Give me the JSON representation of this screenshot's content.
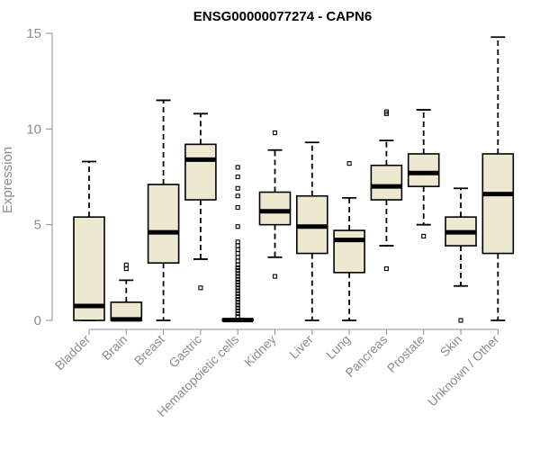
{
  "chart_data": {
    "type": "box",
    "title": "ENSG00000077274 - CAPN6",
    "xlabel": "",
    "ylabel": "Expression",
    "ylim": [
      0,
      15
    ],
    "yticks": [
      0,
      5,
      10,
      15
    ],
    "categories": [
      "Bladder",
      "Brain",
      "Breast",
      "Gastric",
      "Hematopoietic cells",
      "Kidney",
      "Liver",
      "Lung",
      "Pancreas",
      "Prostate",
      "Skin",
      "Unknown / Other"
    ],
    "boxes": [
      {
        "name": "Bladder",
        "min": 0,
        "q1": 0.0,
        "median": 0.75,
        "q3": 5.4,
        "max": 8.3,
        "outliers": []
      },
      {
        "name": "Brain",
        "min": 0,
        "q1": 0.0,
        "median": 0.05,
        "q3": 0.95,
        "max": 2.1,
        "outliers": [
          2.7,
          2.9
        ]
      },
      {
        "name": "Breast",
        "min": 0,
        "q1": 3.0,
        "median": 4.6,
        "q3": 7.1,
        "max": 11.5,
        "outliers": []
      },
      {
        "name": "Gastric",
        "min": 3.2,
        "q1": 6.3,
        "median": 8.4,
        "q3": 9.2,
        "max": 10.8,
        "outliers": [
          1.7
        ]
      },
      {
        "name": "Hematopoietic cells",
        "min": 0,
        "q1": 0.0,
        "median": 0.02,
        "q3": 0.05,
        "max": 0.1,
        "outliers": [
          0.2,
          0.35,
          0.5,
          0.65,
          0.8,
          0.95,
          1.1,
          1.25,
          1.4,
          1.55,
          1.7,
          1.85,
          2.0,
          2.15,
          2.3,
          2.45,
          2.6,
          2.75,
          2.9,
          3.1,
          3.3,
          3.5,
          3.7,
          3.9,
          4.1,
          4.9,
          5.9,
          6.5,
          6.9,
          7.5,
          8.0
        ]
      },
      {
        "name": "Kidney",
        "min": 3.3,
        "q1": 5.0,
        "median": 5.7,
        "q3": 6.7,
        "max": 8.9,
        "outliers": [
          9.8,
          2.3
        ]
      },
      {
        "name": "Liver",
        "min": 0,
        "q1": 3.5,
        "median": 4.9,
        "q3": 6.5,
        "max": 9.3,
        "outliers": []
      },
      {
        "name": "Lung",
        "min": 0,
        "q1": 2.5,
        "median": 4.2,
        "q3": 4.7,
        "max": 6.4,
        "outliers": [
          8.2
        ]
      },
      {
        "name": "Pancreas",
        "min": 3.9,
        "q1": 6.3,
        "median": 7.0,
        "q3": 8.1,
        "max": 9.4,
        "outliers": [
          10.8,
          10.9,
          2.7
        ]
      },
      {
        "name": "Prostate",
        "min": 5.0,
        "q1": 7.0,
        "median": 7.7,
        "q3": 8.7,
        "max": 11.0,
        "outliers": [
          4.4
        ]
      },
      {
        "name": "Skin",
        "min": 1.8,
        "q1": 3.9,
        "median": 4.6,
        "q3": 5.4,
        "max": 6.9,
        "outliers": [
          0.0
        ]
      },
      {
        "name": "Unknown / Other",
        "min": 0,
        "q1": 3.5,
        "median": 6.6,
        "q3": 8.7,
        "max": 14.8,
        "outliers": []
      }
    ]
  }
}
